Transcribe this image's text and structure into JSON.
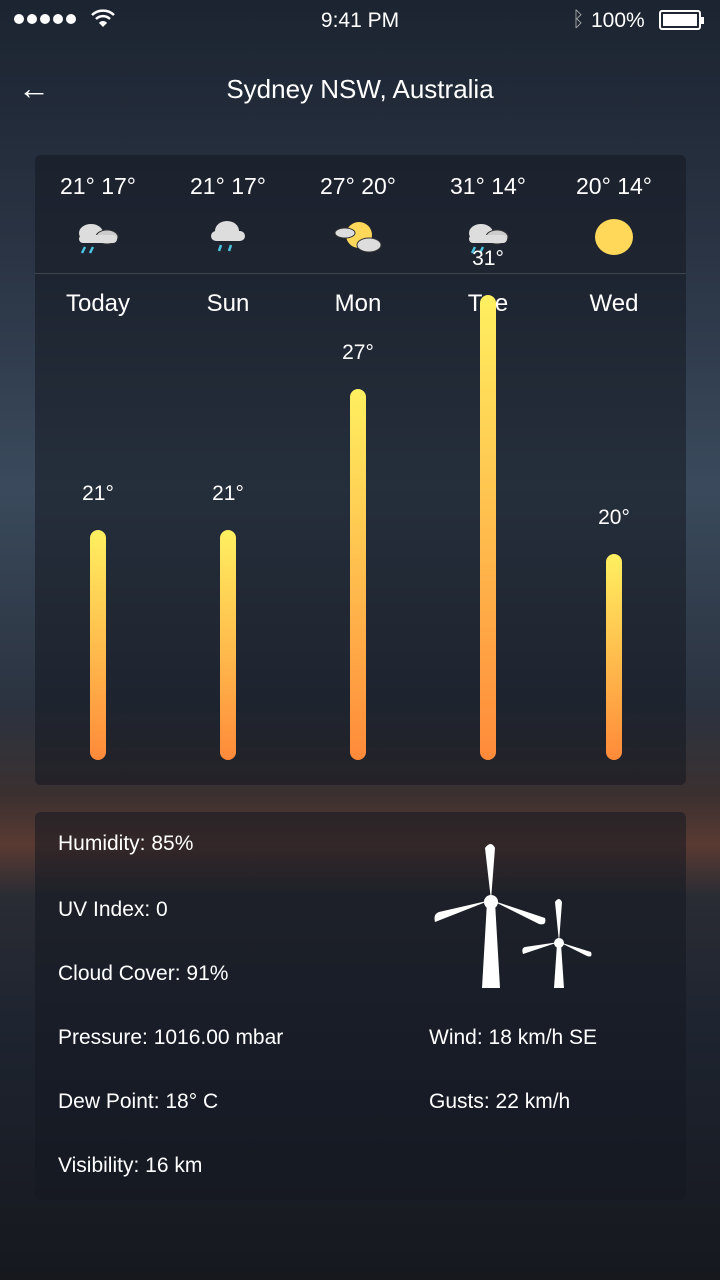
{
  "status": {
    "time": "9:41 PM",
    "battery": "100%",
    "signal_icon": "signal-dots",
    "wifi_icon": "wifi-icon",
    "bluetooth_icon": "bluetooth-icon"
  },
  "header": {
    "title": "Sydney NSW, Australia",
    "back_icon": "arrow-left-icon"
  },
  "forecast": [
    {
      "day": "Today",
      "high": "21°",
      "low": "17°",
      "high_value": 21,
      "icon": "rain-cloudy"
    },
    {
      "day": "Sun",
      "high": "21°",
      "low": "17°",
      "high_value": 21,
      "icon": "rain"
    },
    {
      "day": "Mon",
      "high": "27°",
      "low": "20°",
      "high_value": 27,
      "icon": "partly-sunny"
    },
    {
      "day": "Tue",
      "high": "31°",
      "low": "14°",
      "high_value": 31,
      "icon": "rain-cloudy"
    },
    {
      "day": "Wed",
      "high": "20°",
      "low": "14°",
      "high_value": 20,
      "icon": "sun"
    }
  ],
  "colors": {
    "bar_top": "#fff060",
    "bar_bottom": "#ff8a3a",
    "sun": "#ffd85a",
    "rain": "#4cc4e0"
  },
  "details": {
    "humidity": "Humidity: 85%",
    "uv": "UV Index: 0",
    "cloud": "Cloud Cover: 91%",
    "pressure": "Pressure: 1016.00 mbar",
    "dew": "Dew Point: 18° C",
    "visibility": "Visibility: 16 km",
    "wind": "Wind: 18 km/h SE",
    "gusts": "Gusts: 22 km/h",
    "wind_icon": "wind-turbine-icon"
  }
}
